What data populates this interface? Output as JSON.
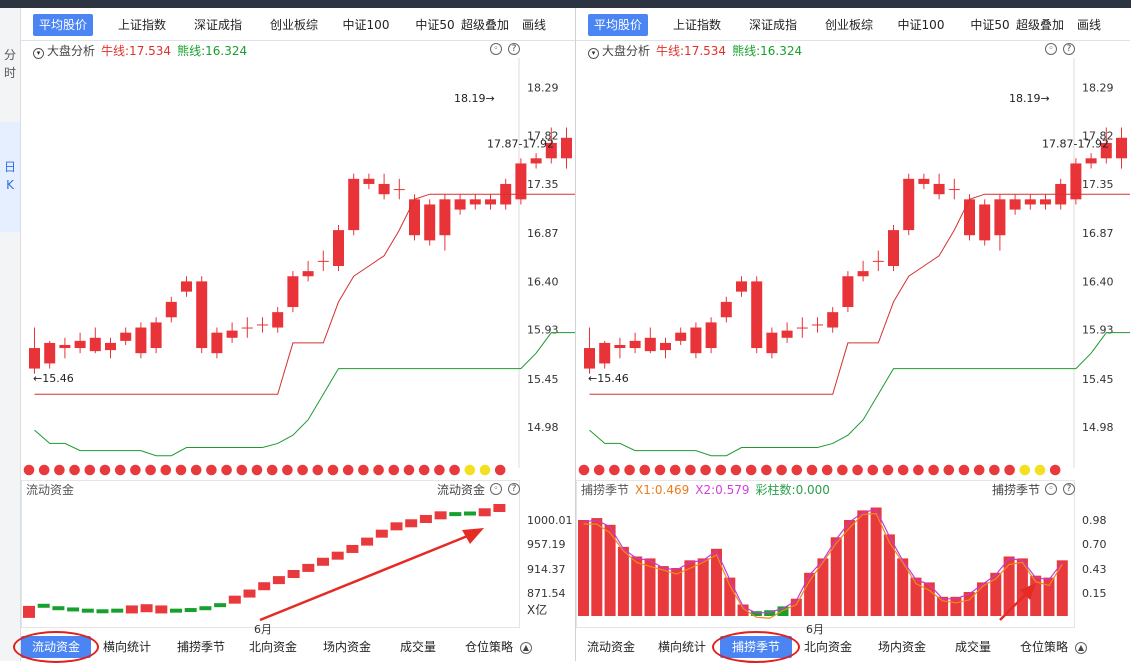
{
  "sidebar": {
    "tabs": [
      {
        "label": "分时"
      },
      {
        "label": "日K"
      }
    ]
  },
  "panels": [
    {
      "tabs": [
        {
          "label": "平均股价",
          "active": true
        },
        {
          "label": "上证指数"
        },
        {
          "label": "深证成指"
        },
        {
          "label": "创业板综"
        },
        {
          "label": "中证100"
        },
        {
          "label": "中证50"
        },
        {
          "label": "超级叠加"
        },
        {
          "label": "画线"
        }
      ],
      "main_header": {
        "title": "大盘分析",
        "bull": "牛线:17.534",
        "bear": "熊线:16.324"
      },
      "sub_header": {
        "title": "流动资金",
        "right_label": "流动资金"
      },
      "sub_extra": [],
      "bottom_tabs": [
        {
          "label": "流动资金",
          "active": true
        },
        {
          "label": "横向统计"
        },
        {
          "label": "捕捞季节"
        },
        {
          "label": "北向资金"
        },
        {
          "label": "场内资金"
        },
        {
          "label": "成交量"
        },
        {
          "label": "仓位策略"
        }
      ],
      "sub_axis": [
        "1000.01",
        "957.19",
        "914.37",
        "871.54"
      ],
      "sub_unit": "X亿",
      "month_label": "6月"
    },
    {
      "tabs": [
        {
          "label": "平均股价",
          "active": true
        },
        {
          "label": "上证指数"
        },
        {
          "label": "深证成指"
        },
        {
          "label": "创业板综"
        },
        {
          "label": "中证100"
        },
        {
          "label": "中证50"
        },
        {
          "label": "超级叠加"
        },
        {
          "label": "画线"
        }
      ],
      "main_header": {
        "title": "大盘分析",
        "bull": "牛线:17.534",
        "bear": "熊线:16.324"
      },
      "sub_header": {
        "title": "捕捞季节",
        "right_label": "捕捞季节"
      },
      "sub_extra": [
        "X1:0.469",
        "X2:0.579",
        "彩柱数:0.000"
      ],
      "bottom_tabs": [
        {
          "label": "流动资金"
        },
        {
          "label": "横向统计"
        },
        {
          "label": "捕捞季节",
          "active": true
        },
        {
          "label": "北向资金"
        },
        {
          "label": "场内资金"
        },
        {
          "label": "成交量"
        },
        {
          "label": "仓位策略"
        }
      ],
      "sub_axis": [
        "0.98",
        "0.70",
        "0.43",
        "0.15"
      ],
      "sub_unit": "",
      "month_label": "6月"
    }
  ],
  "chart_data": {
    "type": "candlestick",
    "y_ticks": [
      "18.29",
      "17.82",
      "17.35",
      "16.87",
      "16.40",
      "15.93",
      "15.45",
      "14.98"
    ],
    "ylim": [
      14.6,
      18.5
    ],
    "annotations": {
      "high": "18.19",
      "low": "15.46",
      "range": "17.87-17.92"
    },
    "candles": [
      [
        15.55,
        15.75,
        15.5,
        15.95
      ],
      [
        15.6,
        15.8,
        15.55,
        15.82
      ],
      [
        15.75,
        15.78,
        15.65,
        15.85
      ],
      [
        15.82,
        15.75,
        15.7,
        15.9
      ],
      [
        15.72,
        15.85,
        15.7,
        15.95
      ],
      [
        15.8,
        15.73,
        15.65,
        15.85
      ],
      [
        15.82,
        15.9,
        15.78,
        15.95
      ],
      [
        15.95,
        15.7,
        15.65,
        16.0
      ],
      [
        15.75,
        16.0,
        15.7,
        16.05
      ],
      [
        16.05,
        16.2,
        16.0,
        16.25
      ],
      [
        16.3,
        16.4,
        16.25,
        16.45
      ],
      [
        16.4,
        15.75,
        15.7,
        16.45
      ],
      [
        15.9,
        15.7,
        15.65,
        15.95
      ],
      [
        15.85,
        15.92,
        15.8,
        16.0
      ],
      [
        15.95,
        15.95,
        15.85,
        16.05
      ],
      [
        15.98,
        15.98,
        15.9,
        16.05
      ],
      [
        16.1,
        15.95,
        15.9,
        16.15
      ],
      [
        16.45,
        16.15,
        16.1,
        16.5
      ],
      [
        16.45,
        16.5,
        16.4,
        16.6
      ],
      [
        16.6,
        16.6,
        16.5,
        16.7
      ],
      [
        16.9,
        16.55,
        16.5,
        16.95
      ],
      [
        17.4,
        16.9,
        16.85,
        17.45
      ],
      [
        17.35,
        17.4,
        17.3,
        17.45
      ],
      [
        17.25,
        17.35,
        17.2,
        17.45
      ],
      [
        17.3,
        17.3,
        17.2,
        17.4
      ],
      [
        17.2,
        16.85,
        16.8,
        17.25
      ],
      [
        17.15,
        16.8,
        16.75,
        17.2
      ],
      [
        16.85,
        17.2,
        16.7,
        17.25
      ],
      [
        17.2,
        17.1,
        17.05,
        17.25
      ],
      [
        17.15,
        17.2,
        17.1,
        17.25
      ],
      [
        17.15,
        17.2,
        17.1,
        17.25
      ],
      [
        17.35,
        17.15,
        17.1,
        17.4
      ],
      [
        17.55,
        17.2,
        17.15,
        17.6
      ],
      [
        17.55,
        17.6,
        17.5,
        17.65
      ],
      [
        17.75,
        17.6,
        17.55,
        17.9
      ],
      [
        17.8,
        17.6,
        17.5,
        17.9
      ],
      [
        17.65,
        17.75,
        17.6,
        17.85
      ],
      [
        17.65,
        17.45,
        17.4,
        17.7
      ],
      [
        17.85,
        17.45,
        17.4,
        17.9
      ],
      [
        18.2,
        18.0,
        17.95,
        18.25
      ]
    ],
    "bull_line": [
      15.3,
      15.3,
      15.3,
      15.3,
      15.3,
      15.3,
      15.3,
      15.3,
      15.3,
      15.3,
      15.3,
      15.3,
      15.3,
      15.3,
      15.3,
      15.3,
      15.3,
      15.8,
      15.8,
      15.8,
      16.2,
      16.45,
      16.55,
      16.65,
      16.9,
      17.2,
      17.25,
      17.25,
      17.25,
      17.25,
      17.25,
      17.25,
      17.25,
      17.25,
      17.25,
      17.25,
      17.25,
      17.25,
      17.45,
      17.55
    ],
    "bear_line": [
      14.95,
      14.82,
      14.82,
      14.75,
      14.75,
      14.75,
      14.75,
      14.75,
      14.7,
      14.7,
      14.78,
      14.78,
      14.78,
      14.78,
      14.78,
      14.78,
      14.82,
      14.9,
      15.05,
      15.3,
      15.55,
      15.55,
      15.55,
      15.55,
      15.55,
      15.55,
      15.55,
      15.55,
      15.55,
      15.55,
      15.55,
      15.55,
      15.55,
      15.7,
      15.9,
      15.9,
      15.9,
      15.9,
      16.0,
      16.3
    ],
    "flow_steps": [
      860,
      870,
      866,
      864,
      862,
      861,
      862,
      864,
      866,
      864,
      862,
      863,
      866,
      871,
      880,
      890,
      902,
      912,
      922,
      932,
      942,
      952,
      963,
      975,
      988,
      1000,
      1005,
      1012,
      1018,
      1020,
      1021,
      1023,
      1030
    ],
    "flow_colors": [
      "r",
      "g",
      "g",
      "g",
      "g",
      "g",
      "g",
      "r",
      "r",
      "r",
      "g",
      "g",
      "g",
      "g",
      "r",
      "r",
      "r",
      "r",
      "r",
      "r",
      "r",
      "r",
      "r",
      "r",
      "r",
      "r",
      "r",
      "r",
      "r",
      "g",
      "g",
      "r",
      "r"
    ],
    "season_bars": [
      1.0,
      1.02,
      0.95,
      0.72,
      0.62,
      0.6,
      0.52,
      0.5,
      0.58,
      0.6,
      0.7,
      0.4,
      0.12,
      0.05,
      0.06,
      0.1,
      0.18,
      0.45,
      0.6,
      0.82,
      1.0,
      1.1,
      1.13,
      0.85,
      0.6,
      0.4,
      0.35,
      0.2,
      0.2,
      0.25,
      0.35,
      0.45,
      0.62,
      0.6,
      0.42,
      0.4,
      0.58
    ],
    "season_green": [
      13,
      14,
      15
    ]
  }
}
